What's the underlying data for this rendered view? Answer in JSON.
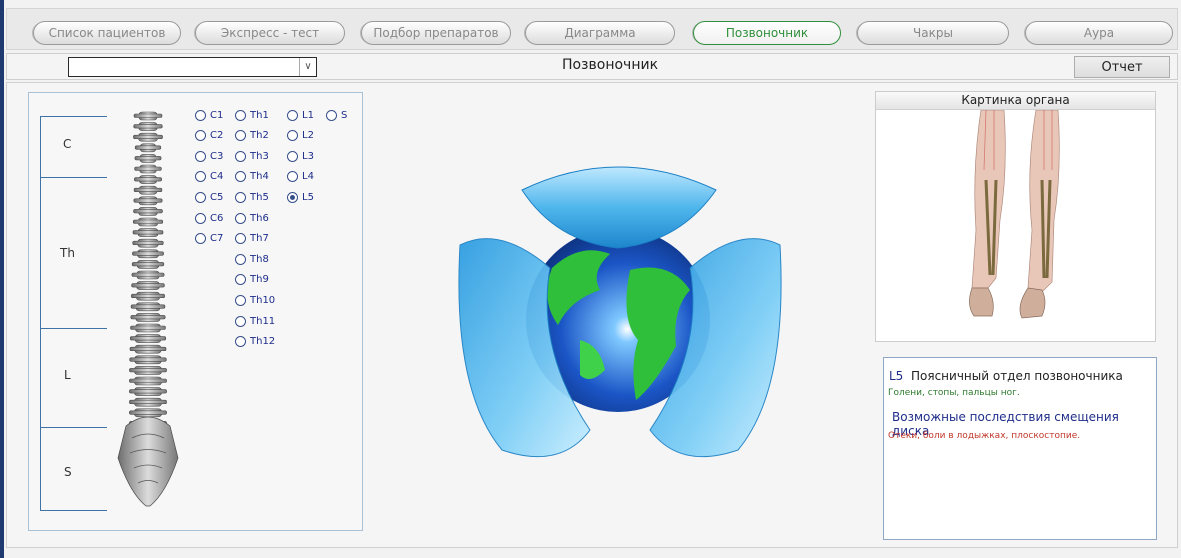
{
  "tabs": [
    {
      "label": "Список пациентов",
      "active": false
    },
    {
      "label": "Экспресс - тест",
      "active": false
    },
    {
      "label": "Подбор препаратов",
      "active": false
    },
    {
      "label": "Диаграмма",
      "active": false
    },
    {
      "label": "Позвоночник",
      "active": true
    },
    {
      "label": "Чакры",
      "active": false
    },
    {
      "label": "Аура",
      "active": false
    }
  ],
  "header": {
    "patient_select_value": "",
    "title": "Позвоночник",
    "report_button": "Отчет"
  },
  "spine": {
    "segments": [
      "C",
      "Th",
      "L",
      "S"
    ],
    "col1": [
      "C1",
      "C2",
      "C3",
      "C4",
      "C5",
      "C6",
      "C7"
    ],
    "col2": [
      "Th1",
      "Th2",
      "Th3",
      "Th4",
      "Th5",
      "Th6",
      "Th7",
      "Th8",
      "Th9",
      "Th10",
      "Th11",
      "Th12"
    ],
    "col3": [
      "L1",
      "L2",
      "L3",
      "L4",
      "L5"
    ],
    "col4": [
      "S"
    ],
    "selected": "L5"
  },
  "organ_panel": {
    "title": "Картинка органа"
  },
  "info": {
    "vertebra": "L5",
    "region": "Поясничный отдел позвоночника",
    "organs": "Голени, стопы, пальцы ног.",
    "consequences_heading": "Возможные последствия смещения диска",
    "consequences": "Отеки, боли в лодыжках, плоскостопие."
  },
  "colors": {
    "active_tab": "#2f8f3a",
    "radio_text": "#1e2d8a",
    "organs_text": "#2d7a2d",
    "consequences_text": "#c0392b",
    "globe_ocean": "#1b55c6",
    "globe_land": "#2fbf3a",
    "shell": "#4fb6ec"
  },
  "icons": [
    "chevron-down-icon",
    "spine-illustration",
    "globe-logo",
    "legs-anatomy-image"
  ]
}
